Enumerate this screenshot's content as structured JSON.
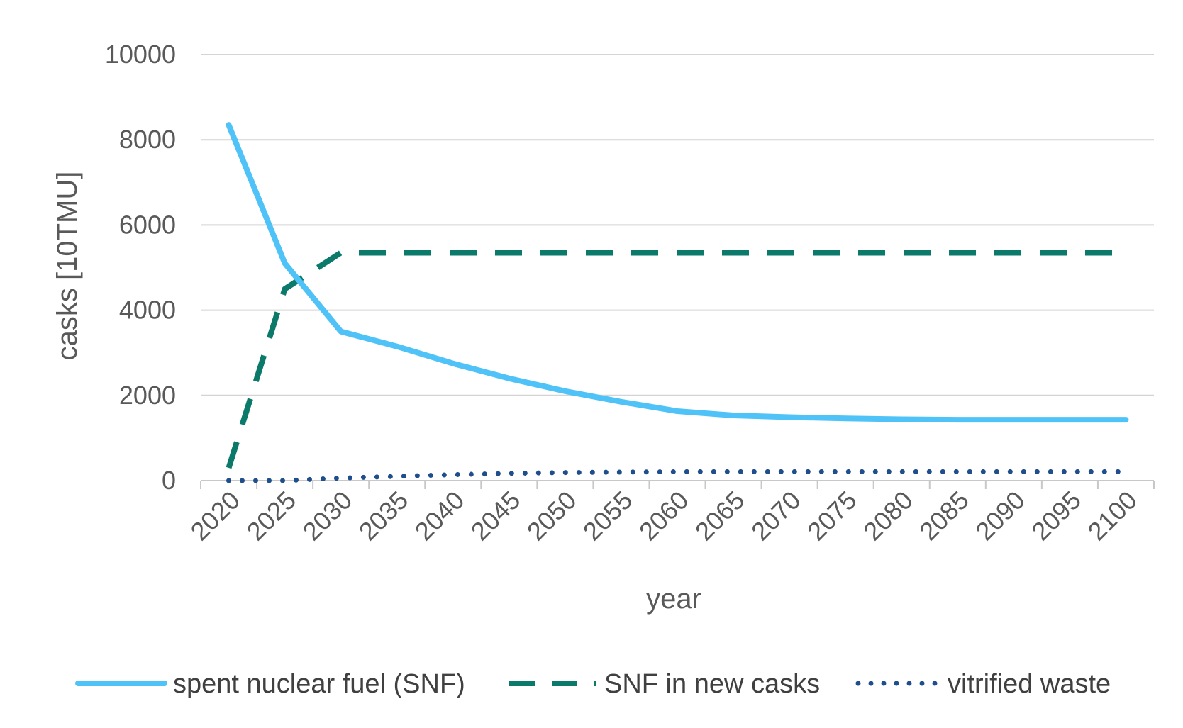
{
  "chart_data": {
    "type": "line",
    "title": "",
    "xlabel": "year",
    "ylabel": "casks [10TMU]",
    "ylim": [
      0,
      10000
    ],
    "yticks": [
      0,
      2000,
      4000,
      6000,
      8000,
      10000
    ],
    "categories": [
      "2020",
      "2025",
      "2030",
      "2035",
      "2040",
      "2045",
      "2050",
      "2055",
      "2060",
      "2065",
      "2070",
      "2075",
      "2080",
      "2085",
      "2090",
      "2095",
      "2100"
    ],
    "grid": true,
    "legend": "bottom",
    "series": [
      {
        "name": "spent nuclear fuel (SNF)",
        "color": "#4FC3F7",
        "style": "solid",
        "values": [
          8350,
          5100,
          3500,
          3150,
          2750,
          2400,
          2100,
          1850,
          1630,
          1530,
          1490,
          1460,
          1440,
          1430,
          1430,
          1430,
          1430
        ]
      },
      {
        "name": "SNF in new casks",
        "color": "#0B7A6B",
        "style": "dashed",
        "values": [
          300,
          4500,
          5350,
          5350,
          5350,
          5350,
          5350,
          5350,
          5350,
          5350,
          5350,
          5350,
          5350,
          5350,
          5350,
          5350,
          5350
        ]
      },
      {
        "name": "vitrified waste",
        "color": "#1F4E8C",
        "style": "dotted",
        "values": [
          0,
          0,
          60,
          100,
          140,
          170,
          190,
          200,
          210,
          210,
          210,
          210,
          210,
          210,
          210,
          210,
          210
        ]
      }
    ]
  }
}
